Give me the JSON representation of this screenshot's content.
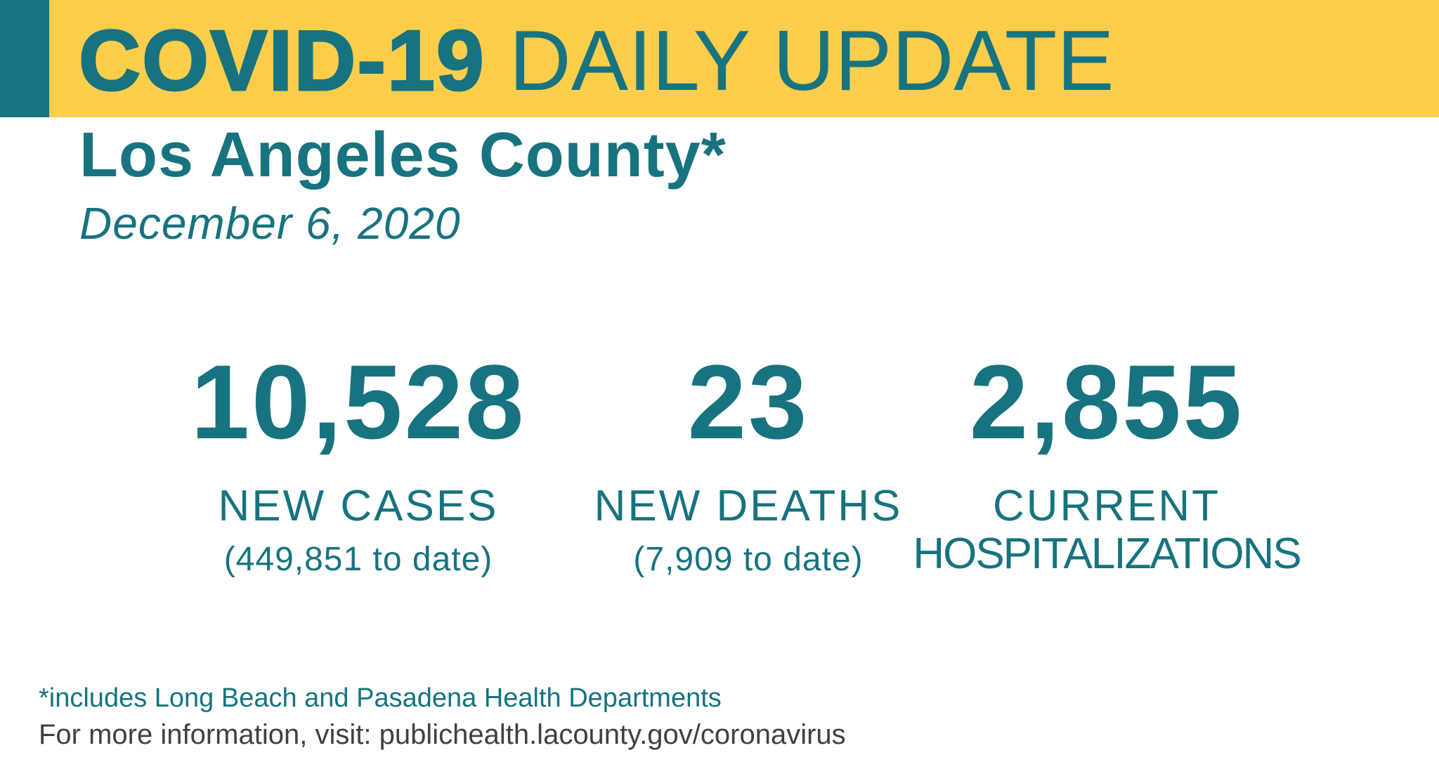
{
  "banner": {
    "title_heavy": "COVID-19",
    "title_light": "DAILY UPDATE"
  },
  "header": {
    "region": "Los Angeles County*",
    "date": "December 6, 2020"
  },
  "stats": [
    {
      "value": "10,528",
      "label": "NEW CASES",
      "label_line2": "",
      "sublabel": "(449,851 to date)"
    },
    {
      "value": "23",
      "label": "NEW DEATHS",
      "label_line2": "",
      "sublabel": "(7,909 to date)"
    },
    {
      "value": "2,855",
      "label": "CURRENT",
      "label_line2": "HOSPITALIZATIONS",
      "sublabel": ""
    }
  ],
  "footer": {
    "footnote": "*includes Long Beach and Pasadena Health Departments",
    "info_line": "For more information, visit: publichealth.lacounty.gov/coronavirus"
  },
  "colors": {
    "teal": "#17737F",
    "banner_yellow": "#FBCD4B",
    "dark_text": "#3E4043"
  },
  "chart_data": {
    "type": "table",
    "title": "COVID-19 DAILY UPDATE",
    "subtitle": "Los Angeles County* — December 6, 2020",
    "metrics": [
      {
        "label": "NEW CASES",
        "value": 10528,
        "cumulative_to_date": 449851
      },
      {
        "label": "NEW DEATHS",
        "value": 23,
        "cumulative_to_date": 7909
      },
      {
        "label": "CURRENT HOSPITALIZATIONS",
        "value": 2855
      }
    ]
  }
}
